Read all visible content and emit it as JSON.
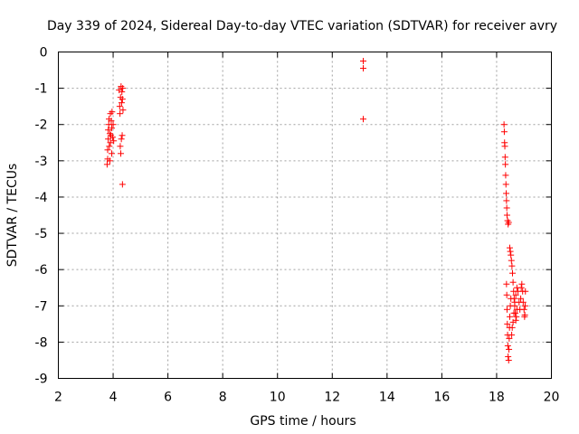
{
  "chart_data": {
    "type": "scatter",
    "title": "Day 339 of 2024, Sidereal Day-to-day VTEC variation (SDTVAR) for receiver avry",
    "xlabel": "GPS time / hours",
    "ylabel": "SDTVAR / TECUs",
    "xlim": [
      2,
      20
    ],
    "ylim": [
      -9,
      0
    ],
    "xticks": [
      2,
      4,
      6,
      8,
      10,
      12,
      14,
      16,
      18,
      20
    ],
    "yticks": [
      0,
      -1,
      -2,
      -3,
      -4,
      -5,
      -6,
      -7,
      -8,
      -9
    ],
    "grid": true,
    "marker": "+",
    "color": "#ff0000",
    "series": [
      {
        "name": "SDTVAR",
        "points": [
          [
            3.78,
            -3.1
          ],
          [
            3.8,
            -2.95
          ],
          [
            3.8,
            -2.7
          ],
          [
            3.82,
            -2.4
          ],
          [
            3.82,
            -2.15
          ],
          [
            3.84,
            -2.0
          ],
          [
            3.85,
            -1.85
          ],
          [
            3.86,
            -2.6
          ],
          [
            3.88,
            -3.0
          ],
          [
            3.88,
            -2.25
          ],
          [
            3.9,
            -1.7
          ],
          [
            3.9,
            -2.5
          ],
          [
            3.92,
            -2.3
          ],
          [
            3.93,
            -1.9
          ],
          [
            3.95,
            -2.8
          ],
          [
            3.95,
            -2.1
          ],
          [
            3.96,
            -1.65
          ],
          [
            3.98,
            -2.35
          ],
          [
            4.0,
            -2.0
          ],
          [
            4.02,
            -2.45
          ],
          [
            4.22,
            -1.05
          ],
          [
            4.24,
            -1.5
          ],
          [
            4.25,
            -1.7
          ],
          [
            4.26,
            -2.6
          ],
          [
            4.27,
            -1.25
          ],
          [
            4.28,
            -2.8
          ],
          [
            4.29,
            -0.95
          ],
          [
            4.3,
            -2.4
          ],
          [
            4.31,
            -1.4
          ],
          [
            4.32,
            -1.1
          ],
          [
            4.33,
            -2.3
          ],
          [
            4.34,
            -1.3
          ],
          [
            4.35,
            -1.0
          ],
          [
            4.36,
            -1.6
          ],
          [
            4.34,
            -3.65
          ],
          [
            13.13,
            -0.25
          ],
          [
            13.13,
            -0.45
          ],
          [
            13.13,
            -1.85
          ],
          [
            18.27,
            -2.0
          ],
          [
            18.28,
            -2.2
          ],
          [
            18.29,
            -2.5
          ],
          [
            18.3,
            -2.6
          ],
          [
            18.31,
            -2.9
          ],
          [
            18.32,
            -3.1
          ],
          [
            18.33,
            -3.4
          ],
          [
            18.34,
            -3.65
          ],
          [
            18.35,
            -3.9
          ],
          [
            18.36,
            -4.1
          ],
          [
            18.37,
            -4.3
          ],
          [
            18.38,
            -4.5
          ],
          [
            18.4,
            -4.65
          ],
          [
            18.42,
            -4.75
          ],
          [
            18.44,
            -4.7
          ],
          [
            18.36,
            -6.4
          ],
          [
            18.37,
            -6.7
          ],
          [
            18.38,
            -7.1
          ],
          [
            18.39,
            -7.5
          ],
          [
            18.4,
            -7.8
          ],
          [
            18.41,
            -8.1
          ],
          [
            18.42,
            -8.4
          ],
          [
            18.44,
            -8.5
          ],
          [
            18.45,
            -8.2
          ],
          [
            18.46,
            -7.9
          ],
          [
            18.47,
            -7.6
          ],
          [
            18.48,
            -7.3
          ],
          [
            18.5,
            -7.0
          ],
          [
            18.52,
            -6.8
          ],
          [
            18.48,
            -5.4
          ],
          [
            18.5,
            -5.5
          ],
          [
            18.52,
            -5.6
          ],
          [
            18.54,
            -5.75
          ],
          [
            18.56,
            -5.9
          ],
          [
            18.58,
            -6.1
          ],
          [
            18.6,
            -6.35
          ],
          [
            18.62,
            -6.6
          ],
          [
            18.64,
            -6.8
          ],
          [
            18.66,
            -7.0
          ],
          [
            18.68,
            -7.2
          ],
          [
            18.7,
            -7.4
          ],
          [
            18.72,
            -7.3
          ],
          [
            18.74,
            -7.1
          ],
          [
            18.55,
            -7.8
          ],
          [
            18.57,
            -7.6
          ],
          [
            18.6,
            -7.45
          ],
          [
            18.63,
            -7.2
          ],
          [
            18.66,
            -6.9
          ],
          [
            18.7,
            -6.7
          ],
          [
            18.74,
            -6.5
          ],
          [
            18.78,
            -6.6
          ],
          [
            18.82,
            -6.9
          ],
          [
            18.85,
            -7.1
          ],
          [
            18.88,
            -6.8
          ],
          [
            18.9,
            -6.5
          ],
          [
            18.92,
            -6.4
          ],
          [
            18.95,
            -6.6
          ],
          [
            18.97,
            -6.9
          ],
          [
            19.0,
            -7.1
          ],
          [
            19.02,
            -7.3
          ],
          [
            19.04,
            -7.0
          ],
          [
            19.05,
            -6.6
          ],
          [
            19.03,
            -7.25
          ]
        ]
      }
    ]
  }
}
